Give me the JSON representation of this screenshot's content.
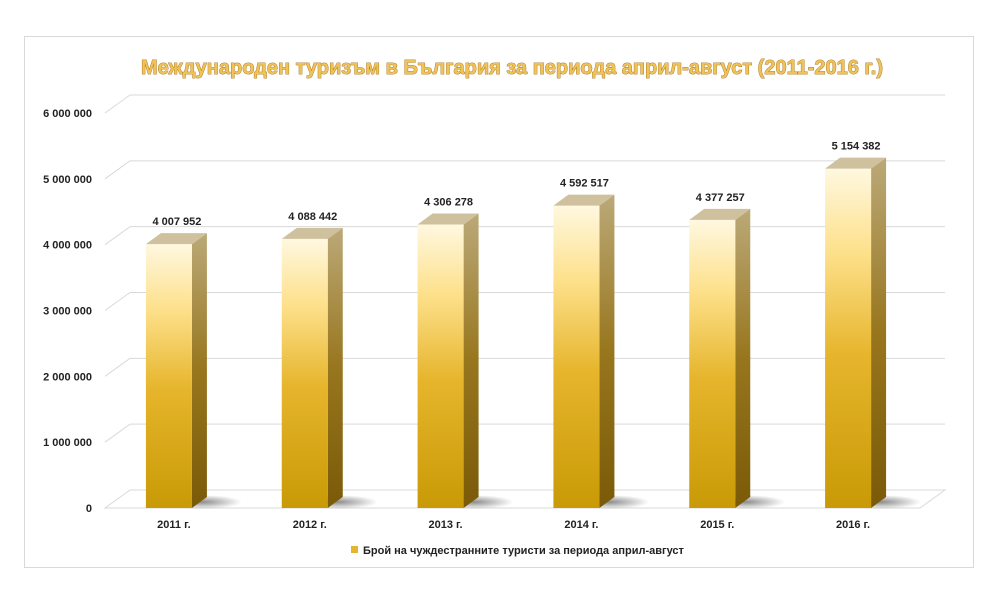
{
  "chart_data": {
    "type": "bar",
    "title": "Международен туризъм в България за периода април-август (2011-2016 г.)",
    "categories": [
      "2011 г.",
      "2012 г.",
      "2013 г.",
      "2014 г.",
      "2015 г.",
      "2016 г."
    ],
    "series": [
      {
        "name": "Брой на чуждестранните туристи за периода април-август",
        "values": [
          4007952,
          4088442,
          4306278,
          4592517,
          4377257,
          5154382
        ],
        "labels": [
          "4 007 952",
          "4 088 442",
          "4 306 278",
          "4 592 517",
          "4 377 257",
          "5 154 382"
        ]
      }
    ],
    "ylim": [
      0,
      6000000
    ],
    "yticks": [
      0,
      1000000,
      2000000,
      3000000,
      4000000,
      5000000,
      6000000
    ],
    "ytick_labels": [
      "0",
      "1 000 000",
      "2 000 000",
      "3 000 000",
      "4 000 000",
      "5 000 000",
      "6 000 000"
    ],
    "grid": true,
    "legend_position": "bottom",
    "colors": {
      "bar_top": "#fff6d6",
      "bar_mid": "#f5c94a",
      "bar_bottom": "#c89a08",
      "bar_side": "#8a6a12",
      "bar_cap": "#cdbf9c",
      "title_fill": "#f0c35a"
    }
  }
}
